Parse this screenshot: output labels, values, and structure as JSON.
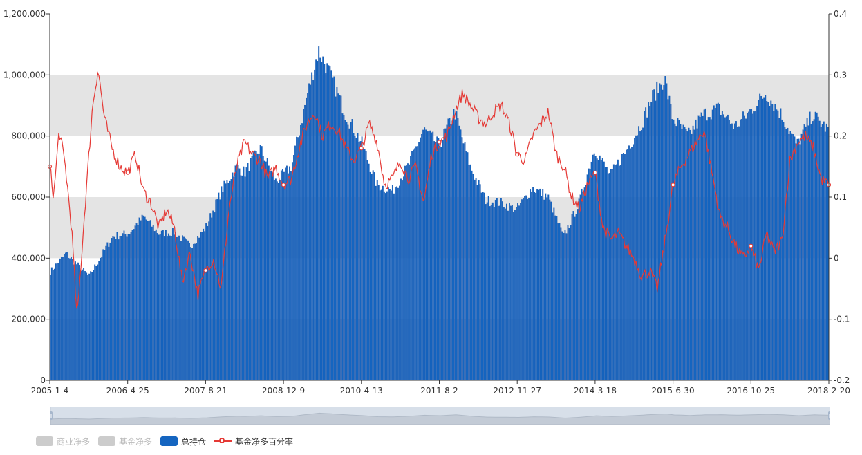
{
  "chart_data": {
    "type": "bar+line",
    "x_categories_shown": [
      "2005-1-4",
      "2006-4-25",
      "2007-8-21",
      "2008-12-9",
      "2010-4-13",
      "2011-8-2",
      "2012-11-27",
      "2014-3-18",
      "2015-6-30",
      "2016-10-25",
      "2018-2-20"
    ],
    "y_left": {
      "ticks": [
        "0",
        "200,000",
        "400,000",
        "600,000",
        "800,000",
        "1,000,000",
        "1,200,000"
      ],
      "ylim": [
        0,
        1200000
      ]
    },
    "y_right": {
      "ticks": [
        "-0.2",
        "-0.1",
        "0",
        "0.1",
        "0.2",
        "0.3",
        "0.4"
      ],
      "ylim": [
        -0.2,
        0.4
      ]
    },
    "grid_bands": "alternating grey horizontal bands",
    "legend_position": "bottom-left",
    "series": [
      {
        "name": "商业净多",
        "type": "bar",
        "color": "#cccccc",
        "visible": false
      },
      {
        "name": "基金净多",
        "type": "bar",
        "color": "#cccccc",
        "visible": false
      },
      {
        "name": "总持仓",
        "type": "bar",
        "axis": "left",
        "color": "#1565c0",
        "keypoints": [
          [
            0,
            355000
          ],
          [
            0.02,
            415000
          ],
          [
            0.05,
            340000
          ],
          [
            0.08,
            470000
          ],
          [
            0.1,
            480000
          ],
          [
            0.12,
            535000
          ],
          [
            0.14,
            480000
          ],
          [
            0.16,
            485000
          ],
          [
            0.18,
            440000
          ],
          [
            0.2,
            500000
          ],
          [
            0.22,
            620000
          ],
          [
            0.24,
            700000
          ],
          [
            0.25,
            680000
          ],
          [
            0.27,
            760000
          ],
          [
            0.29,
            650000
          ],
          [
            0.31,
            700000
          ],
          [
            0.33,
            930000
          ],
          [
            0.345,
            1080000
          ],
          [
            0.36,
            1000000
          ],
          [
            0.38,
            870000
          ],
          [
            0.4,
            780000
          ],
          [
            0.42,
            640000
          ],
          [
            0.44,
            620000
          ],
          [
            0.46,
            700000
          ],
          [
            0.48,
            820000
          ],
          [
            0.5,
            770000
          ],
          [
            0.52,
            880000
          ],
          [
            0.54,
            700000
          ],
          [
            0.56,
            590000
          ],
          [
            0.58,
            580000
          ],
          [
            0.6,
            560000
          ],
          [
            0.62,
            630000
          ],
          [
            0.64,
            600000
          ],
          [
            0.66,
            470000
          ],
          [
            0.68,
            580000
          ],
          [
            0.7,
            760000
          ],
          [
            0.72,
            670000
          ],
          [
            0.74,
            750000
          ],
          [
            0.76,
            840000
          ],
          [
            0.775,
            930000
          ],
          [
            0.79,
            990000
          ],
          [
            0.8,
            860000
          ],
          [
            0.82,
            800000
          ],
          [
            0.84,
            870000
          ],
          [
            0.86,
            890000
          ],
          [
            0.88,
            830000
          ],
          [
            0.9,
            880000
          ],
          [
            0.92,
            940000
          ],
          [
            0.94,
            870000
          ],
          [
            0.96,
            770000
          ],
          [
            0.98,
            870000
          ],
          [
            1.0,
            820000
          ]
        ]
      },
      {
        "name": "基金净多百分率",
        "type": "line",
        "axis": "right",
        "color": "#e53935",
        "keypoints": [
          [
            0,
            0.15
          ],
          [
            0.005,
            0.1
          ],
          [
            0.012,
            0.21
          ],
          [
            0.02,
            0.15
          ],
          [
            0.028,
            0.05
          ],
          [
            0.035,
            -0.1
          ],
          [
            0.045,
            0.08
          ],
          [
            0.055,
            0.25
          ],
          [
            0.062,
            0.31
          ],
          [
            0.07,
            0.23
          ],
          [
            0.08,
            0.18
          ],
          [
            0.09,
            0.15
          ],
          [
            0.1,
            0.14
          ],
          [
            0.11,
            0.17
          ],
          [
            0.12,
            0.11
          ],
          [
            0.13,
            0.09
          ],
          [
            0.14,
            0.05
          ],
          [
            0.15,
            0.08
          ],
          [
            0.16,
            0.05
          ],
          [
            0.17,
            -0.04
          ],
          [
            0.18,
            0.01
          ],
          [
            0.19,
            -0.06
          ],
          [
            0.2,
            -0.02
          ],
          [
            0.21,
            0.0
          ],
          [
            0.22,
            -0.05
          ],
          [
            0.23,
            0.08
          ],
          [
            0.24,
            0.15
          ],
          [
            0.25,
            0.19
          ],
          [
            0.26,
            0.17
          ],
          [
            0.27,
            0.16
          ],
          [
            0.28,
            0.13
          ],
          [
            0.29,
            0.15
          ],
          [
            0.3,
            0.12
          ],
          [
            0.31,
            0.13
          ],
          [
            0.32,
            0.18
          ],
          [
            0.33,
            0.22
          ],
          [
            0.34,
            0.24
          ],
          [
            0.35,
            0.2
          ],
          [
            0.36,
            0.22
          ],
          [
            0.37,
            0.21
          ],
          [
            0.38,
            0.18
          ],
          [
            0.39,
            0.16
          ],
          [
            0.4,
            0.18
          ],
          [
            0.41,
            0.22
          ],
          [
            0.42,
            0.19
          ],
          [
            0.43,
            0.12
          ],
          [
            0.44,
            0.13
          ],
          [
            0.45,
            0.16
          ],
          [
            0.46,
            0.13
          ],
          [
            0.47,
            0.15
          ],
          [
            0.48,
            0.09
          ],
          [
            0.49,
            0.17
          ],
          [
            0.5,
            0.19
          ],
          [
            0.51,
            0.2
          ],
          [
            0.52,
            0.24
          ],
          [
            0.53,
            0.27
          ],
          [
            0.54,
            0.25
          ],
          [
            0.55,
            0.23
          ],
          [
            0.56,
            0.22
          ],
          [
            0.57,
            0.24
          ],
          [
            0.58,
            0.25
          ],
          [
            0.59,
            0.22
          ],
          [
            0.6,
            0.17
          ],
          [
            0.61,
            0.16
          ],
          [
            0.62,
            0.2
          ],
          [
            0.63,
            0.22
          ],
          [
            0.64,
            0.24
          ],
          [
            0.65,
            0.17
          ],
          [
            0.66,
            0.15
          ],
          [
            0.67,
            0.1
          ],
          [
            0.68,
            0.08
          ],
          [
            0.69,
            0.12
          ],
          [
            0.7,
            0.14
          ],
          [
            0.71,
            0.05
          ],
          [
            0.72,
            0.03
          ],
          [
            0.73,
            0.04
          ],
          [
            0.74,
            0.02
          ],
          [
            0.75,
            0.0
          ],
          [
            0.76,
            -0.03
          ],
          [
            0.77,
            -0.02
          ],
          [
            0.78,
            -0.05
          ],
          [
            0.79,
            0.03
          ],
          [
            0.8,
            0.12
          ],
          [
            0.81,
            0.15
          ],
          [
            0.82,
            0.17
          ],
          [
            0.83,
            0.19
          ],
          [
            0.84,
            0.21
          ],
          [
            0.85,
            0.14
          ],
          [
            0.86,
            0.07
          ],
          [
            0.87,
            0.05
          ],
          [
            0.88,
            0.02
          ],
          [
            0.89,
            0.0
          ],
          [
            0.9,
            0.02
          ],
          [
            0.91,
            -0.02
          ],
          [
            0.92,
            0.04
          ],
          [
            0.93,
            0.01
          ],
          [
            0.94,
            0.03
          ],
          [
            0.95,
            0.16
          ],
          [
            0.96,
            0.19
          ],
          [
            0.97,
            0.2
          ],
          [
            0.98,
            0.18
          ],
          [
            0.99,
            0.13
          ],
          [
            1.0,
            0.12
          ]
        ]
      }
    ]
  },
  "legend": {
    "items": [
      {
        "label": "商业净多",
        "color": "#cccccc",
        "kind": "bar",
        "active": false
      },
      {
        "label": "基金净多",
        "color": "#cccccc",
        "kind": "bar",
        "active": false
      },
      {
        "label": "总持仓",
        "color": "#1565c0",
        "kind": "bar",
        "active": true
      },
      {
        "label": "基金净多百分率",
        "color": "#e53935",
        "kind": "line",
        "active": true
      }
    ]
  }
}
